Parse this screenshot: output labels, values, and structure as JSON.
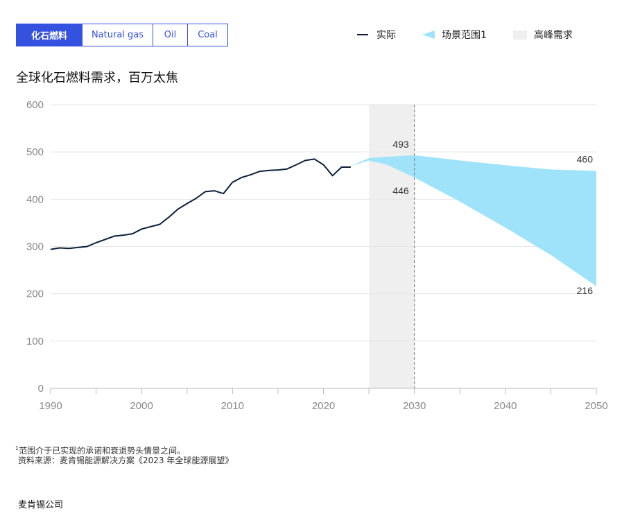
{
  "tabs": [
    {
      "label": "化石燃料",
      "active": true
    },
    {
      "label": "Natural gas",
      "active": false
    },
    {
      "label": "Oil",
      "active": false
    },
    {
      "label": "Coal",
      "active": false
    }
  ],
  "legend": {
    "actual": "实际",
    "scenario": "场景范围1",
    "peak": "高峰需求"
  },
  "title": "全球化石燃料需求，百万太焦",
  "footnote": {
    "marker": "1",
    "note": "范围介于已实现的承诺和衰退势头情景之间。",
    "source": "资料来源：麦肯锡能源解决方案《2023 年全球能源展望》"
  },
  "brand": "麦肯锡公司",
  "colors": {
    "accent": "#3451e0",
    "actual_line": "#0b1f3a",
    "scenario_fill": "#9fe3fb",
    "peak_band": "#efefef"
  },
  "chart_data": {
    "type": "line",
    "xlim": [
      1990,
      2050
    ],
    "ylim": [
      0,
      600
    ],
    "x_ticks": [
      1990,
      2000,
      2010,
      2020,
      2030,
      2040,
      2050
    ],
    "y_ticks": [
      0,
      100,
      200,
      300,
      400,
      500,
      600
    ],
    "grid": true,
    "legend_position": "top-right",
    "peak_band": [
      2025,
      2030
    ],
    "reference_line_x": 2030,
    "series": [
      {
        "name": "实际",
        "x": [
          1990,
          1991,
          1992,
          1993,
          1994,
          1995,
          1996,
          1997,
          1998,
          1999,
          2000,
          2001,
          2002,
          2003,
          2004,
          2005,
          2006,
          2007,
          2008,
          2009,
          2010,
          2011,
          2012,
          2013,
          2014,
          2015,
          2016,
          2017,
          2018,
          2019,
          2020,
          2021,
          2022,
          2023
        ],
        "values": [
          294,
          297,
          296,
          298,
          300,
          308,
          315,
          322,
          324,
          327,
          337,
          342,
          347,
          362,
          379,
          391,
          402,
          416,
          418,
          412,
          436,
          446,
          452,
          459,
          461,
          462,
          464,
          473,
          482,
          485,
          473,
          450,
          468,
          468
        ]
      }
    ],
    "scenario_range": {
      "name": "场景范围1",
      "x": [
        2023,
        2025,
        2027,
        2030,
        2035,
        2040,
        2045,
        2050
      ],
      "upper": [
        470,
        487,
        490,
        493,
        482,
        472,
        463,
        460
      ],
      "lower": [
        470,
        482,
        473,
        446,
        395,
        340,
        282,
        216
      ]
    },
    "annotations": [
      {
        "x": 2030,
        "y": 493,
        "text": "493"
      },
      {
        "x": 2030,
        "y": 446,
        "text": "446"
      },
      {
        "x": 2050,
        "y": 460,
        "text": "460"
      },
      {
        "x": 2050,
        "y": 216,
        "text": "216"
      }
    ]
  }
}
